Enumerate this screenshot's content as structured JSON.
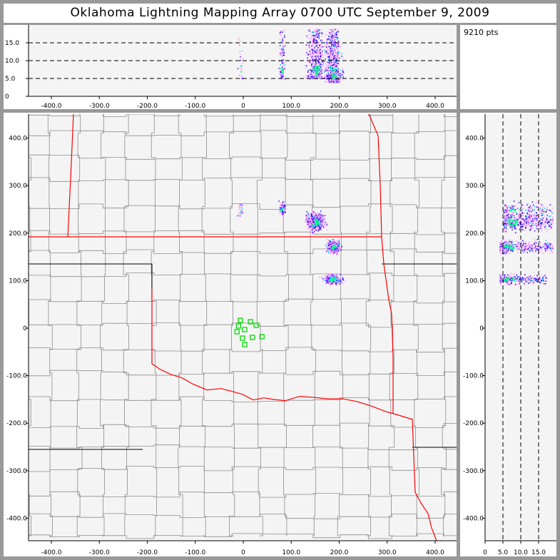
{
  "title": "Oklahoma Lightning Mapping Array    0700 UTC  September 9, 2009",
  "point_count": "9210 pts",
  "colors": {
    "frame": "#999999",
    "plot_bg": "#f4f4f4",
    "state_border": "#ff0000",
    "county": "#8c8c8c",
    "station": "#00dd00",
    "density_low": "#ff99ff",
    "density_mid": "#3300ff",
    "density_high": "#00ff88"
  },
  "chart_data": [
    {
      "panel": "altitude-vs-east-west",
      "type": "scatter",
      "xlim": [
        -450,
        450
      ],
      "ylim": [
        0,
        20
      ],
      "xticks": [
        "-400.0",
        "-300.0",
        "-200.0",
        "-100.0",
        "0",
        "100.0",
        "200.0",
        "300.0",
        "400.0"
      ],
      "xtick_values": [
        -400,
        -300,
        -200,
        -100,
        0,
        100,
        200,
        300,
        400
      ],
      "yticks": [
        "0",
        "5.0",
        "10.0",
        "15.0"
      ],
      "ytick_values": [
        0,
        5,
        10,
        15
      ],
      "dashed_gridlines_y": [
        5,
        10,
        15
      ]
    },
    {
      "panel": "plan-view-map",
      "type": "scatter",
      "xlim": [
        -450,
        450
      ],
      "ylim": [
        -450,
        450
      ],
      "xticks": [
        "-400.0",
        "-300.0",
        "-200.0",
        "-100.0",
        "0",
        "100.0",
        "200.0",
        "300.0",
        "400.0"
      ],
      "xtick_values": [
        -400,
        -300,
        -200,
        -100,
        0,
        100,
        200,
        300,
        400
      ],
      "yticks": [
        "400.0",
        "300.0",
        "200.0",
        "100.0",
        "0",
        "-100.0",
        "-200.0",
        "-300.0",
        "-400.0"
      ],
      "ytick_values": [
        400,
        300,
        200,
        100,
        0,
        -100,
        -200,
        -300,
        -400
      ],
      "stations": [
        [
          -6,
          16.5
        ],
        [
          15,
          13.5
        ],
        [
          27,
          6
        ],
        [
          -10,
          4.5
        ],
        [
          3,
          -3
        ],
        [
          -13,
          -7.5
        ],
        [
          39,
          -18
        ],
        [
          19,
          -19.5
        ],
        [
          -1.5,
          -21
        ],
        [
          3,
          -34.5
        ]
      ],
      "clusters": [
        {
          "x": -6,
          "y": 248,
          "alt": [
            5,
            17
          ],
          "n": 150,
          "sx": 4,
          "sy": 8
        },
        {
          "x": 80,
          "y": 251,
          "alt": [
            5,
            19
          ],
          "n": 700,
          "sx": 4,
          "sy": 9
        },
        {
          "x": 150,
          "y": 225,
          "alt": [
            5,
            19
          ],
          "n": 3200,
          "sx": 13,
          "sy": 14
        },
        {
          "x": 188,
          "y": 172,
          "alt": [
            4,
            19
          ],
          "n": 2400,
          "sx": 9,
          "sy": 9
        },
        {
          "x": 186,
          "y": 104,
          "alt": [
            4,
            17
          ],
          "n": 1800,
          "sx": 13,
          "sy": 7
        }
      ]
    },
    {
      "panel": "north-south-vs-altitude",
      "type": "scatter",
      "xlim": [
        0,
        20
      ],
      "ylim": [
        -450,
        450
      ],
      "xticks": [
        "0",
        "5.0",
        "10.0",
        "15.0"
      ],
      "xtick_values": [
        0,
        5,
        10,
        15
      ],
      "yticks": [
        "400.0",
        "300.0",
        "200.0",
        "100.0",
        "0",
        "-100.0",
        "-200.0",
        "-300.0",
        "-400.0"
      ],
      "ytick_values": [
        400,
        300,
        200,
        100,
        0,
        -100,
        -200,
        -300,
        -400
      ],
      "dashed_gridlines_x": [
        5,
        10,
        15
      ]
    }
  ]
}
